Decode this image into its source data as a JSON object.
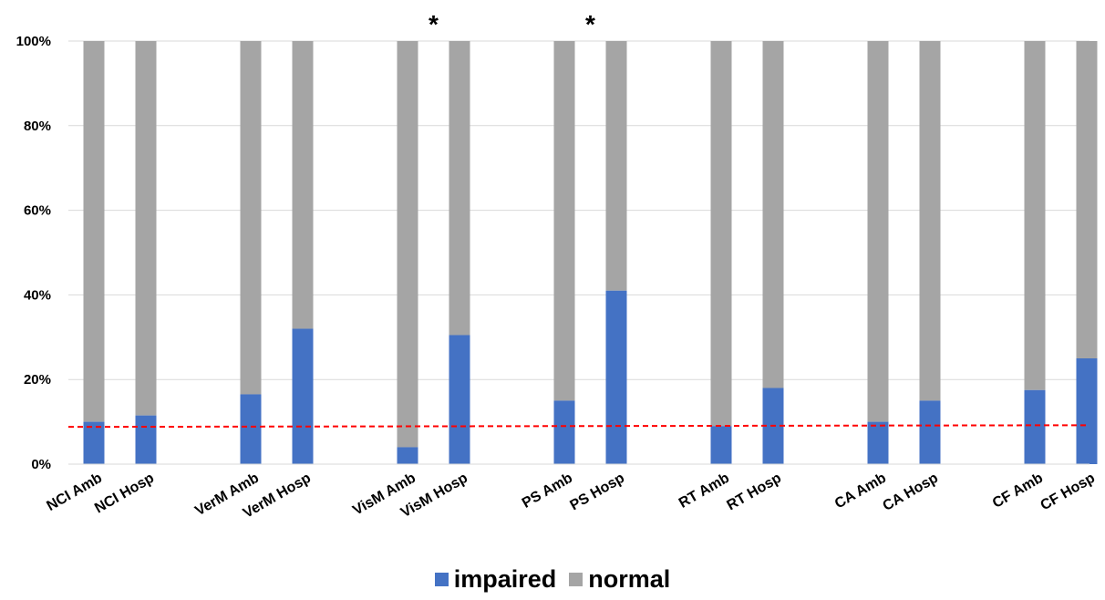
{
  "chart_data": {
    "type": "bar",
    "stacked": true,
    "categories": [
      "NCI  Amb",
      "NCI Hosp",
      "VerM Amb",
      "VerM Hosp",
      "VisM Amb",
      "VisM Hosp",
      "PS Amb",
      "PS Hosp",
      "RT Amb",
      "RT Hosp",
      "CA Amb",
      "CA Hosp",
      "CF Amb",
      "CF Hosp"
    ],
    "series": [
      {
        "name": "impaired",
        "color": "#4472C4",
        "values": [
          10,
          11.5,
          16.5,
          32,
          4,
          30.5,
          15,
          41,
          9,
          18,
          10,
          15,
          17.5,
          25
        ]
      },
      {
        "name": "normal",
        "color": "#A5A5A5",
        "values": [
          90,
          88.5,
          83.5,
          68,
          96,
          69.5,
          85,
          59,
          91,
          82,
          90,
          85,
          82.5,
          75
        ]
      }
    ],
    "ylim": [
      0,
      100
    ],
    "yticks": [
      "0%",
      "20%",
      "40%",
      "60%",
      "80%",
      "100%"
    ],
    "grid": true,
    "legend_position": "bottom",
    "reference_line": {
      "style": "dashed",
      "color": "#FF0000",
      "start_value": 8.8,
      "end_value": 9.2
    },
    "annotations": [
      {
        "category": "VisM Amb",
        "text": "*"
      },
      {
        "category": "PS Amb",
        "text": "*"
      }
    ]
  }
}
